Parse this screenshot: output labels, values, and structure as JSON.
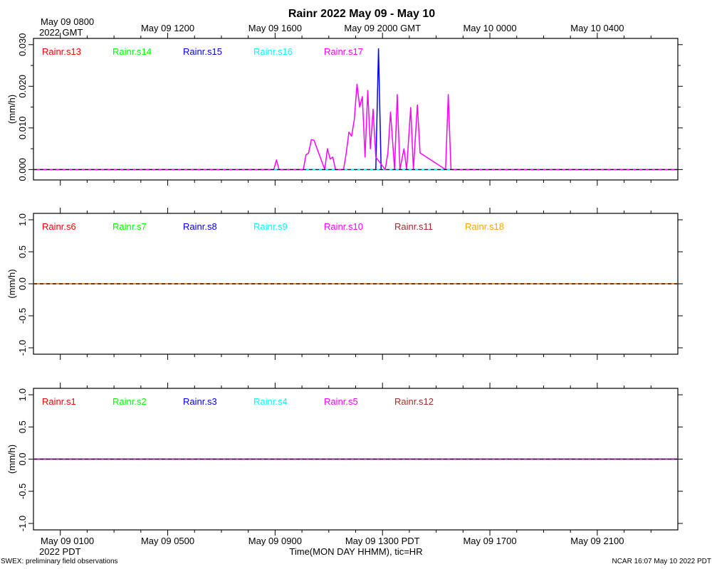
{
  "title": "Rainr 2022 May 09 - May 10",
  "top_axis": {
    "ticks": [
      "May 09 0800",
      "May 09 1200",
      "May 09 1600",
      "May 09 2000 GMT",
      "May 10 0000",
      "May 10 0400"
    ],
    "suffix": "2022 GMT"
  },
  "bottom_axis": {
    "ticks": [
      "May 09 0100",
      "May 09 0500",
      "May 09 0900",
      "May 09 1300 PDT",
      "May 09 1700",
      "May 09 2100"
    ],
    "suffix": "2022 PDT",
    "xlabel": "Time(MON DAY HHMM), tic=HR"
  },
  "footer": {
    "left": "SWEX: preliminary field observations",
    "right": "NCAR 16:07 May 10 2022 PDT"
  },
  "colors": {
    "red": "#ff0000",
    "green": "#00ff00",
    "blue": "#0000ff",
    "cyan": "#00ffff",
    "magenta": "#ff00ff",
    "brown": "#a52a2a",
    "orange": "#ffa500"
  },
  "chart_data": [
    {
      "type": "line",
      "ylabel": "(mm/h)",
      "xlim_hours_pdt": [
        0.0,
        24.0
      ],
      "ylim": [
        -0.0025,
        0.0315
      ],
      "yticks": [
        "0.000",
        "0.010",
        "0.020",
        "0.030"
      ],
      "ytick_values": [
        0.0,
        0.01,
        0.02,
        0.03
      ],
      "zero_line": "dashed",
      "series": [
        {
          "name": "Rainr.s13",
          "color": "#ff0000",
          "x_hours_pdt": [
            0,
            24
          ],
          "values": [
            0,
            0
          ]
        },
        {
          "name": "Rainr.s14",
          "color": "#00ff00",
          "x_hours_pdt": [
            0,
            24
          ],
          "values": [
            0,
            0
          ]
        },
        {
          "name": "Rainr.s15",
          "color": "#0000ff",
          "x_hours_pdt": [
            0,
            12.5,
            12.75,
            12.85,
            12.95,
            13.05,
            24
          ],
          "values": [
            0,
            0,
            0,
            0.029,
            0,
            0,
            0
          ]
        },
        {
          "name": "Rainr.s16",
          "color": "#00ffff",
          "x_hours_pdt": [
            0,
            24
          ],
          "values": [
            0,
            0
          ]
        },
        {
          "name": "Rainr.s17",
          "color": "#ff00ff",
          "x_hours_pdt": [
            0,
            8.95,
            9.05,
            9.15,
            10.05,
            10.15,
            10.25,
            10.35,
            10.45,
            10.85,
            10.95,
            11.05,
            11.15,
            11.25,
            11.55,
            11.65,
            11.75,
            11.85,
            11.95,
            12.05,
            12.15,
            12.25,
            12.35,
            12.45,
            12.55,
            12.65,
            12.75,
            13.1,
            13.2,
            13.3,
            13.45,
            13.55,
            13.65,
            13.8,
            13.9,
            14.05,
            14.15,
            14.3,
            14.4,
            15.35,
            15.45,
            15.55,
            24
          ],
          "values": [
            0,
            0,
            0.0023,
            0,
            0,
            0.0035,
            0.004,
            0.0072,
            0.007,
            0,
            0.005,
            0.0025,
            0.003,
            0,
            0,
            0.004,
            0.009,
            0.008,
            0.012,
            0.0205,
            0.015,
            0.0175,
            0.003,
            0.019,
            0.005,
            0.0145,
            0.003,
            0,
            0.004,
            0.0138,
            0,
            0.018,
            0,
            0.005,
            0,
            0.0149,
            0,
            0.0155,
            0.004,
            0,
            0.018,
            0,
            0
          ]
        }
      ],
      "legend_placement": "top-left, in a row"
    },
    {
      "type": "line",
      "ylabel": "(mm/h)",
      "xlim_hours_pdt": [
        0.0,
        24.0
      ],
      "ylim": [
        -1.1,
        1.1
      ],
      "yticks": [
        "1.0",
        "0.5",
        "0.0",
        "-0.5",
        "-1.0"
      ],
      "ytick_values": [
        1.0,
        0.5,
        0.0,
        -0.5,
        -1.0
      ],
      "zero_line": "dashed",
      "series": [
        {
          "name": "Rainr.s6",
          "color": "#ff0000",
          "x_hours_pdt": [
            0,
            24
          ],
          "values": [
            0,
            0
          ]
        },
        {
          "name": "Rainr.s7",
          "color": "#00ff00",
          "x_hours_pdt": [
            0,
            24
          ],
          "values": [
            0,
            0
          ]
        },
        {
          "name": "Rainr.s8",
          "color": "#0000ff",
          "x_hours_pdt": [
            0,
            24
          ],
          "values": [
            0,
            0
          ]
        },
        {
          "name": "Rainr.s9",
          "color": "#00ffff",
          "x_hours_pdt": [
            0,
            24
          ],
          "values": [
            0,
            0
          ]
        },
        {
          "name": "Rainr.s10",
          "color": "#ff00ff",
          "x_hours_pdt": [
            0,
            24
          ],
          "values": [
            0,
            0
          ]
        },
        {
          "name": "Rainr.s11",
          "color": "#a52a2a",
          "x_hours_pdt": [
            0,
            24
          ],
          "values": [
            0,
            0
          ]
        },
        {
          "name": "Rainr.s18",
          "color": "#ffa500",
          "x_hours_pdt": [
            0,
            24
          ],
          "values": [
            0,
            0
          ]
        }
      ],
      "legend_placement": "top-left, in a row"
    },
    {
      "type": "line",
      "ylabel": "(mm/h)",
      "xlim_hours_pdt": [
        0.0,
        24.0
      ],
      "ylim": [
        -1.1,
        1.1
      ],
      "yticks": [
        "1.0",
        "0.5",
        "0.0",
        "-0.5",
        "-1.0"
      ],
      "ytick_values": [
        1.0,
        0.5,
        0.0,
        -0.5,
        -1.0
      ],
      "zero_line": "dashed",
      "series": [
        {
          "name": "Rainr.s1",
          "color": "#ff0000",
          "x_hours_pdt": [
            0,
            24
          ],
          "values": [
            0,
            0
          ]
        },
        {
          "name": "Rainr.s2",
          "color": "#00ff00",
          "x_hours_pdt": [
            0,
            24
          ],
          "values": [
            0,
            0
          ]
        },
        {
          "name": "Rainr.s3",
          "color": "#0000ff",
          "x_hours_pdt": [
            0,
            24
          ],
          "values": [
            0,
            0
          ]
        },
        {
          "name": "Rainr.s4",
          "color": "#00ffff",
          "x_hours_pdt": [
            0,
            24
          ],
          "values": [
            0,
            0
          ]
        },
        {
          "name": "Rainr.s5",
          "color": "#ff00ff",
          "x_hours_pdt": [
            0,
            24
          ],
          "values": [
            0,
            0
          ]
        },
        {
          "name": "Rainr.s12",
          "color": "#a52a2a",
          "x_hours_pdt": [
            0,
            24
          ],
          "values": [
            0,
            0
          ]
        }
      ],
      "legend_placement": "top-left, in a row"
    }
  ]
}
